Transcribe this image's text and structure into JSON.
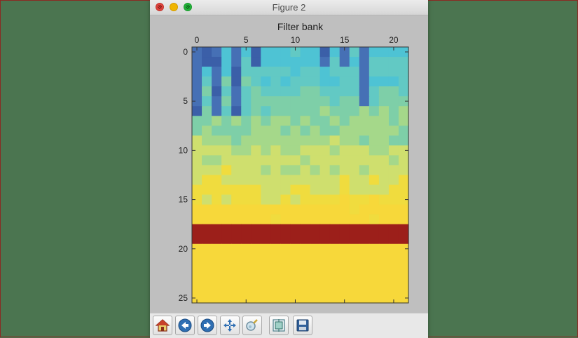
{
  "window": {
    "title": "Figure 2"
  },
  "toolbar": {
    "buttons": [
      {
        "name": "home-button",
        "icon": "home-icon"
      },
      {
        "name": "back-button",
        "icon": "back-arrow-icon"
      },
      {
        "name": "forward-button",
        "icon": "forward-arrow-icon"
      },
      {
        "name": "pan-button",
        "icon": "move-arrows-icon"
      },
      {
        "name": "zoom-button",
        "icon": "zoom-icon"
      },
      {
        "name": "subplots-button",
        "icon": "subplots-icon"
      },
      {
        "name": "save-button",
        "icon": "floppy-disk-icon"
      }
    ]
  },
  "chart_data": {
    "type": "heatmap",
    "title": "Filter bank",
    "xlabel": "",
    "ylabel": "",
    "x_ticks": [
      0,
      5,
      10,
      15,
      20
    ],
    "y_ticks": [
      0,
      5,
      10,
      15,
      20,
      25
    ],
    "x_tick_position": "top",
    "xlim": [
      -0.5,
      21.5
    ],
    "ylim": [
      25.5,
      -0.5
    ],
    "columns": 22,
    "rows": 26,
    "colormap": [
      "#3b5fa8",
      "#4670b5",
      "#4ec3d4",
      "#62c9c4",
      "#7ecfa8",
      "#a5d88a",
      "#cfdf6e",
      "#f0dc3e",
      "#f7d83a"
    ],
    "highlight_color": "#9c1f1a",
    "value_range": [
      0,
      1
    ],
    "dark_columns": [
      {
        "col": 0,
        "rows_end": 6.5
      },
      {
        "col": 1,
        "rows_end": 2
      },
      {
        "col": 2,
        "rows_end": 6.5
      },
      {
        "col": 4,
        "rows_end": 6.5
      },
      {
        "col": 6,
        "rows_end": 1.5
      },
      {
        "col": 13,
        "rows_end": 1.5
      },
      {
        "col": 15,
        "rows_end": 1.5
      },
      {
        "col": 17,
        "rows_end": 5.5
      }
    ],
    "highlight_rows": [
      18,
      19
    ],
    "bottom_rows_value": 1.0
  }
}
